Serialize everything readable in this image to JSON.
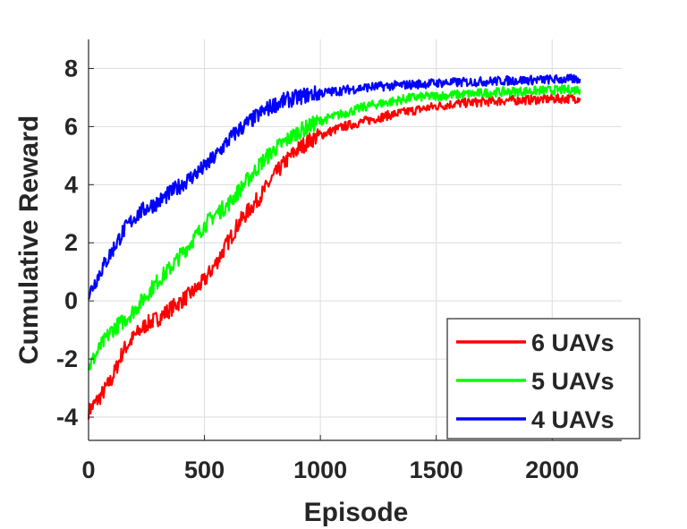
{
  "chart_data": {
    "type": "line",
    "title": "",
    "xlabel": "Episode",
    "ylabel": "Cumulative Reward",
    "xlim": [
      0,
      2300
    ],
    "ylim": [
      -4.8,
      9
    ],
    "xticks": [
      0,
      500,
      1000,
      1500,
      2000
    ],
    "yticks": [
      -4,
      -2,
      0,
      2,
      4,
      6,
      8
    ],
    "xtick_labels": [
      "0",
      "500",
      "1000",
      "1500",
      "2000"
    ],
    "ytick_labels": [
      "-4",
      "-2",
      "0",
      "2",
      "4",
      "6",
      "8"
    ],
    "grid": true,
    "legend_position": "bottom-right",
    "series": [
      {
        "name": "6 UAVs",
        "color": "#ff0000",
        "x": [
          0,
          50,
          100,
          150,
          200,
          250,
          300,
          350,
          400,
          450,
          500,
          550,
          600,
          650,
          700,
          750,
          800,
          850,
          900,
          950,
          1000,
          1100,
          1200,
          1300,
          1400,
          1500,
          1600,
          1700,
          1800,
          1900,
          2000,
          2100,
          2120
        ],
        "y": [
          -3.8,
          -3.3,
          -2.7,
          -1.7,
          -1.2,
          -0.8,
          -0.6,
          -0.3,
          0.0,
          0.3,
          0.7,
          1.3,
          2.0,
          2.7,
          3.2,
          3.7,
          4.3,
          4.8,
          5.2,
          5.5,
          5.7,
          6.0,
          6.2,
          6.4,
          6.55,
          6.7,
          6.8,
          6.85,
          6.9,
          6.92,
          6.95,
          6.97,
          6.98
        ]
      },
      {
        "name": "5 UAVs",
        "color": "#00ff00",
        "x": [
          0,
          50,
          100,
          150,
          200,
          250,
          300,
          350,
          400,
          450,
          500,
          550,
          600,
          650,
          700,
          750,
          800,
          850,
          900,
          950,
          1000,
          1100,
          1200,
          1300,
          1400,
          1500,
          1600,
          1700,
          1800,
          1900,
          2000,
          2100,
          2120
        ],
        "y": [
          -2.3,
          -1.6,
          -1.0,
          -0.7,
          -0.3,
          0.2,
          0.7,
          1.1,
          1.6,
          2.1,
          2.6,
          3.0,
          3.3,
          3.8,
          4.3,
          4.8,
          5.2,
          5.5,
          5.8,
          6.0,
          6.2,
          6.45,
          6.7,
          6.85,
          7.0,
          7.05,
          7.1,
          7.15,
          7.2,
          7.22,
          7.25,
          7.27,
          7.28
        ]
      },
      {
        "name": "4 UAVs",
        "color": "#0000ff",
        "x": [
          0,
          50,
          100,
          150,
          200,
          250,
          300,
          350,
          400,
          450,
          500,
          550,
          600,
          650,
          700,
          750,
          800,
          850,
          900,
          950,
          1000,
          1100,
          1200,
          1300,
          1400,
          1500,
          1600,
          1700,
          1800,
          1900,
          2000,
          2100,
          2120
        ],
        "y": [
          0.2,
          1.0,
          1.7,
          2.4,
          2.9,
          3.2,
          3.4,
          3.7,
          4.0,
          4.3,
          4.6,
          5.0,
          5.5,
          5.9,
          6.2,
          6.5,
          6.75,
          6.9,
          7.0,
          7.1,
          7.15,
          7.25,
          7.35,
          7.4,
          7.45,
          7.5,
          7.52,
          7.55,
          7.58,
          7.6,
          7.62,
          7.63,
          7.64
        ]
      }
    ]
  }
}
